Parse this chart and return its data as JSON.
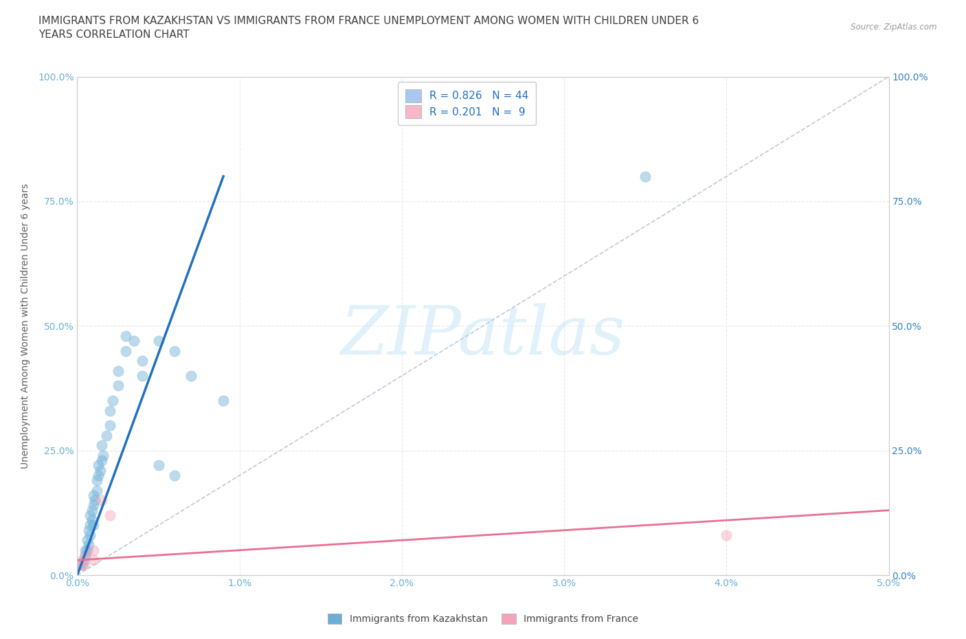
{
  "title": "IMMIGRANTS FROM KAZAKHSTAN VS IMMIGRANTS FROM FRANCE UNEMPLOYMENT AMONG WOMEN WITH CHILDREN UNDER 6\nYEARS CORRELATION CHART",
  "source": "Source: ZipAtlas.com",
  "xlabel_ticks": [
    "0.0%",
    "1.0%",
    "2.0%",
    "3.0%",
    "4.0%",
    "5.0%"
  ],
  "ylabel_ticks_left": [
    "0.0%",
    "25.0%",
    "50.0%",
    "75.0%",
    "100.0%"
  ],
  "ylabel_ticks_right": [
    "0.0%",
    "25.0%",
    "50.0%",
    "75.0%",
    "100.0%"
  ],
  "ylabel_label": "Unemployment Among Women with Children Under 6 years",
  "xlim": [
    0.0,
    0.05
  ],
  "ylim": [
    0.0,
    1.0
  ],
  "watermark_text": "ZIPatlas",
  "legend_entries": [
    {
      "label": "R = 0.826   N = 44",
      "color": "#a8c8f0"
    },
    {
      "label": "R = 0.201   N =  9",
      "color": "#f8b8c8"
    }
  ],
  "kaz_scatter_x": [
    0.0002,
    0.0003,
    0.0004,
    0.0005,
    0.0005,
    0.0006,
    0.0006,
    0.0007,
    0.0007,
    0.0008,
    0.0008,
    0.0008,
    0.0009,
    0.0009,
    0.001,
    0.001,
    0.001,
    0.0011,
    0.0012,
    0.0012,
    0.0013,
    0.0013,
    0.0014,
    0.0015,
    0.0015,
    0.0016,
    0.0018,
    0.002,
    0.002,
    0.0022,
    0.0025,
    0.0025,
    0.003,
    0.003,
    0.0035,
    0.004,
    0.004,
    0.005,
    0.005,
    0.006,
    0.006,
    0.007,
    0.009,
    0.035
  ],
  "kaz_scatter_y": [
    0.02,
    0.02,
    0.03,
    0.04,
    0.05,
    0.05,
    0.07,
    0.06,
    0.09,
    0.08,
    0.1,
    0.12,
    0.11,
    0.13,
    0.1,
    0.14,
    0.16,
    0.15,
    0.17,
    0.19,
    0.2,
    0.22,
    0.21,
    0.23,
    0.26,
    0.24,
    0.28,
    0.3,
    0.33,
    0.35,
    0.38,
    0.41,
    0.45,
    0.48,
    0.47,
    0.4,
    0.43,
    0.47,
    0.22,
    0.45,
    0.2,
    0.4,
    0.35,
    0.8
  ],
  "fra_scatter_x": [
    0.0002,
    0.0003,
    0.0004,
    0.0005,
    0.001,
    0.001,
    0.0015,
    0.002,
    0.04
  ],
  "fra_scatter_y": [
    0.02,
    0.03,
    0.02,
    0.04,
    0.03,
    0.05,
    0.15,
    0.12,
    0.08
  ],
  "kaz_line_x": [
    0.0,
    0.009
  ],
  "kaz_line_y": [
    0.0,
    0.8
  ],
  "fra_line_x": [
    0.0,
    0.05
  ],
  "fra_line_y": [
    0.03,
    0.13
  ],
  "diag_line_x": [
    0.0,
    0.05
  ],
  "diag_line_y": [
    0.0,
    1.0
  ],
  "kaz_color": "#6baed6",
  "fra_color": "#f4a4b8",
  "kaz_line_color": "#2070c0",
  "fra_line_color": "#e87090",
  "diag_color": "#c0c8d8",
  "bg_color": "#ffffff",
  "grid_color": "#e8e8e8",
  "title_color": "#404040",
  "axis_label_color": "#606060",
  "tick_color_left": "#6baed6",
  "tick_color_right": "#3182bd",
  "title_fontsize": 11,
  "axis_label_fontsize": 10,
  "tick_fontsize": 10,
  "legend_fontsize": 11,
  "scatter_size": 120,
  "scatter_alpha": 0.45,
  "fra_scatter_size": 120,
  "fra_scatter_alpha": 0.45
}
